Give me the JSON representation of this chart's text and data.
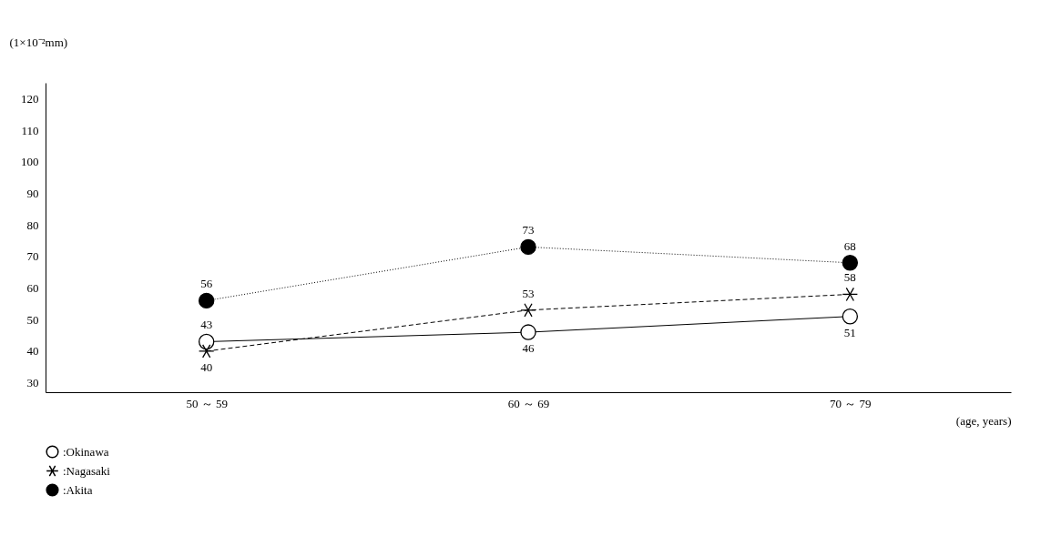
{
  "chart_data": {
    "type": "line",
    "ylabel": "(1×10⁻²mm)",
    "xlabel": "(age, years)",
    "categories": [
      "50 ～ 59",
      "60 ～ 69",
      "70 ～ 79"
    ],
    "ylim": [
      27,
      125
    ],
    "yticks": [
      30,
      40,
      50,
      60,
      70,
      80,
      90,
      100,
      110,
      120
    ],
    "grid": false,
    "legend": "bottom",
    "data_labels": true,
    "series": [
      {
        "name": ":Okinawa",
        "color": "#000000",
        "marker": "circle",
        "line_style": "solid",
        "values": [
          43,
          46,
          51
        ]
      },
      {
        "name": ":Nagasaki",
        "color": "#000000",
        "marker": "cross",
        "line_style": "dashed",
        "values": [
          40,
          53,
          58
        ]
      },
      {
        "name": ":Akita",
        "color": "#000000",
        "marker": "circle",
        "line_style": "dotted",
        "values": [
          56,
          73,
          68
        ]
      }
    ]
  }
}
